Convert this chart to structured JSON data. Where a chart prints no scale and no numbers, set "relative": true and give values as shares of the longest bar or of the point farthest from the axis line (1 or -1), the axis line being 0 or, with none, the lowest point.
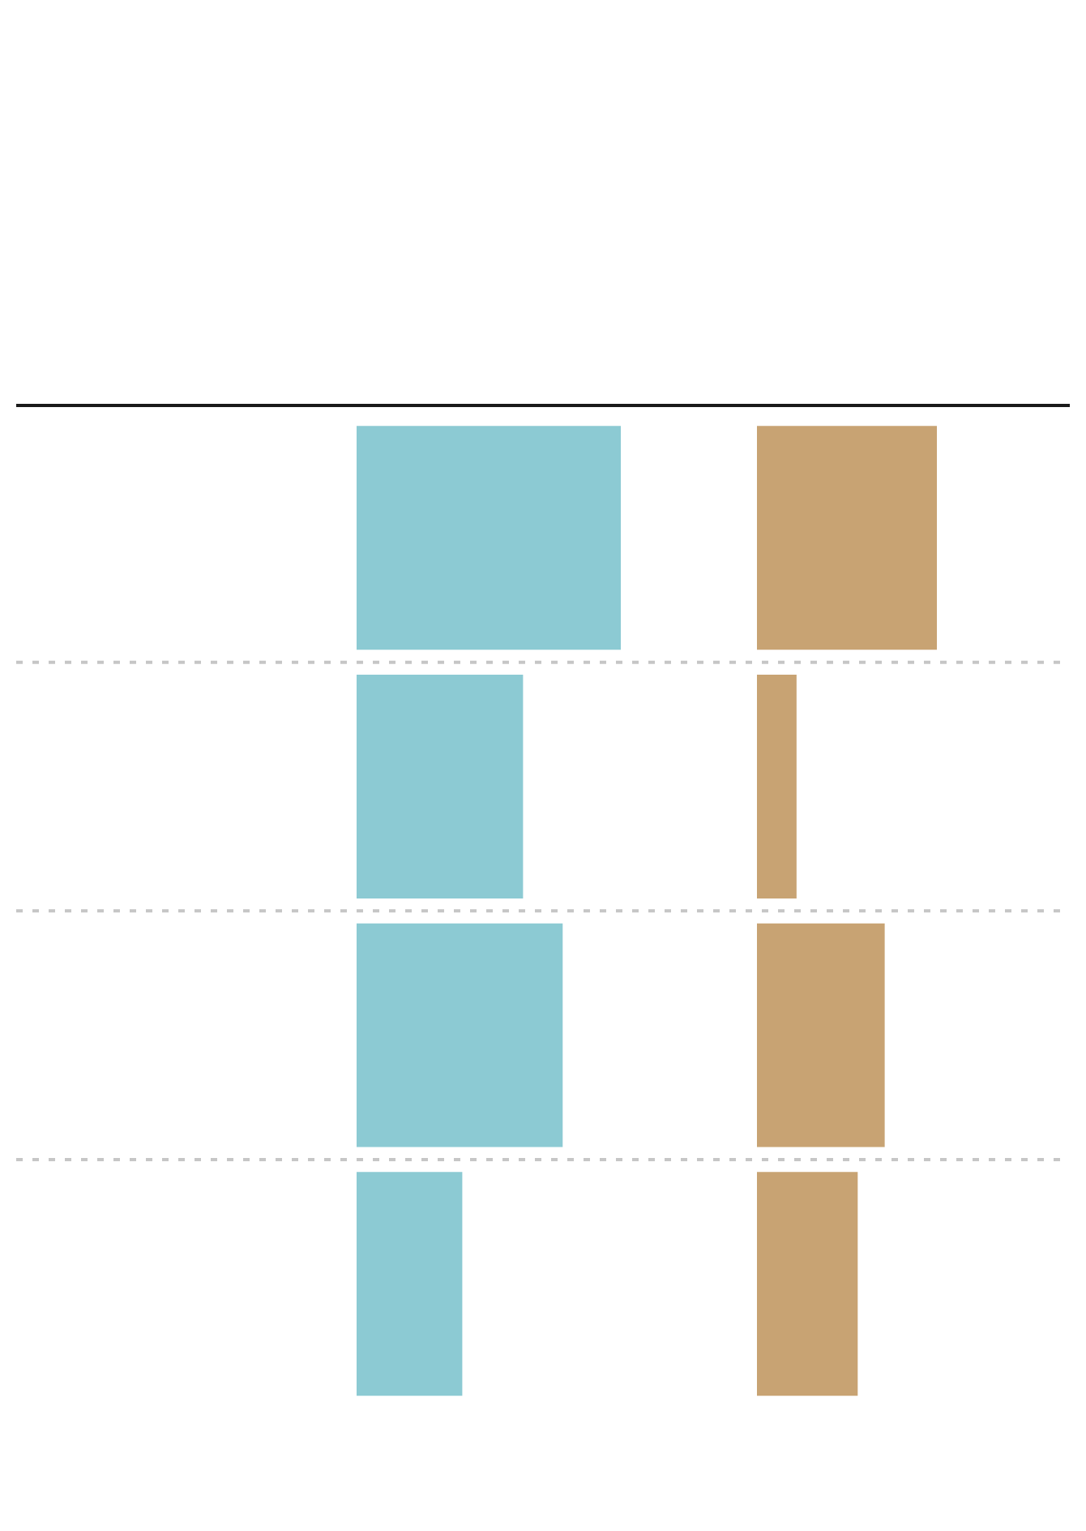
{
  "chart_data": [
    {
      "type": "bar",
      "orientation": "horizontal",
      "relative": true,
      "categories": [
        null,
        null,
        null,
        null
      ],
      "values": [
        1,
        0.63,
        0.78,
        0.4
      ],
      "color": "#8ccad3",
      "grid": "y"
    },
    {
      "type": "bar",
      "orientation": "horizontal",
      "relative": true,
      "categories": [
        null,
        null,
        null,
        null
      ],
      "values": [
        1,
        0.22,
        0.71,
        0.56
      ],
      "color": "#c8a373",
      "grid": "y"
    }
  ]
}
